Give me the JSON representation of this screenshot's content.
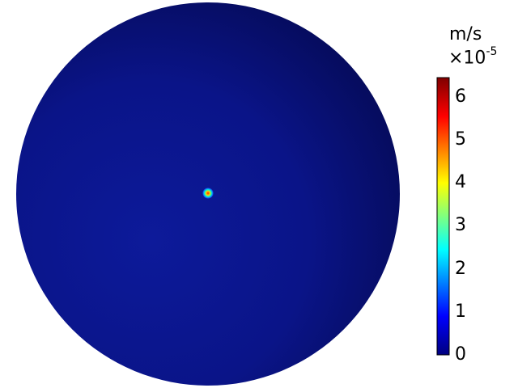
{
  "legend": {
    "unit": "m/s",
    "scale_base": "×10",
    "scale_exponent": "-5",
    "ticks": [
      "0",
      "1",
      "2",
      "3",
      "4",
      "5",
      "6"
    ],
    "range": [
      0,
      6.45
    ]
  },
  "colors": {
    "domain_fill": "#0a1488",
    "domain_shade": "#060b5c",
    "colormap": [
      "#00007f",
      "#0000ff",
      "#00ffff",
      "#ffff00",
      "#ff0000",
      "#7f0000"
    ]
  }
}
